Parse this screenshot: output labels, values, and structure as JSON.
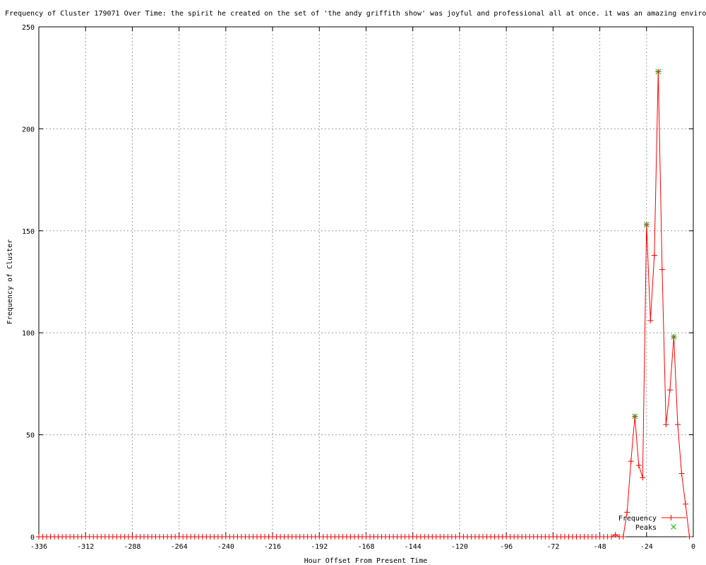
{
  "chart_data": {
    "type": "line",
    "title": "Frequency of Cluster 179071 Over Time: the spirit he created on the set of 'the andy griffith show' was joyful and professional all at once. it was an amazing environ",
    "xlabel": "Hour Offset From Present Time",
    "ylabel": "Frequency of Cluster",
    "xlim": [
      -336,
      0
    ],
    "ylim": [
      0,
      250
    ],
    "xticks": [
      -336,
      -312,
      -288,
      -264,
      -240,
      -216,
      -192,
      -168,
      -144,
      -120,
      -96,
      -72,
      -48,
      -24,
      0
    ],
    "yticks": [
      0,
      50,
      100,
      150,
      200,
      250
    ],
    "grid": true,
    "legend_position": "bottom-right",
    "colors": {
      "frequency": "#ff0000",
      "peaks": "#00c000",
      "grid": "#a0a0a0"
    },
    "series": [
      {
        "name": "Frequency",
        "x_start": -336,
        "x_step": 2,
        "nonzero": {
          "-40": 1,
          "-34": 12,
          "-32": 37,
          "-30": 59,
          "-28": 35,
          "-26": 29,
          "-24": 153,
          "-22": 106,
          "-20": 138,
          "-18": 228,
          "-16": 131,
          "-14": 55,
          "-12": 72,
          "-10": 98,
          "-8": 55,
          "-6": 31,
          "-4": 16,
          "-2": 0
        }
      },
      {
        "name": "Peaks",
        "points": [
          [
            -30,
            59
          ],
          [
            -24,
            153
          ],
          [
            -18,
            228
          ],
          [
            -10,
            98
          ]
        ]
      }
    ]
  }
}
